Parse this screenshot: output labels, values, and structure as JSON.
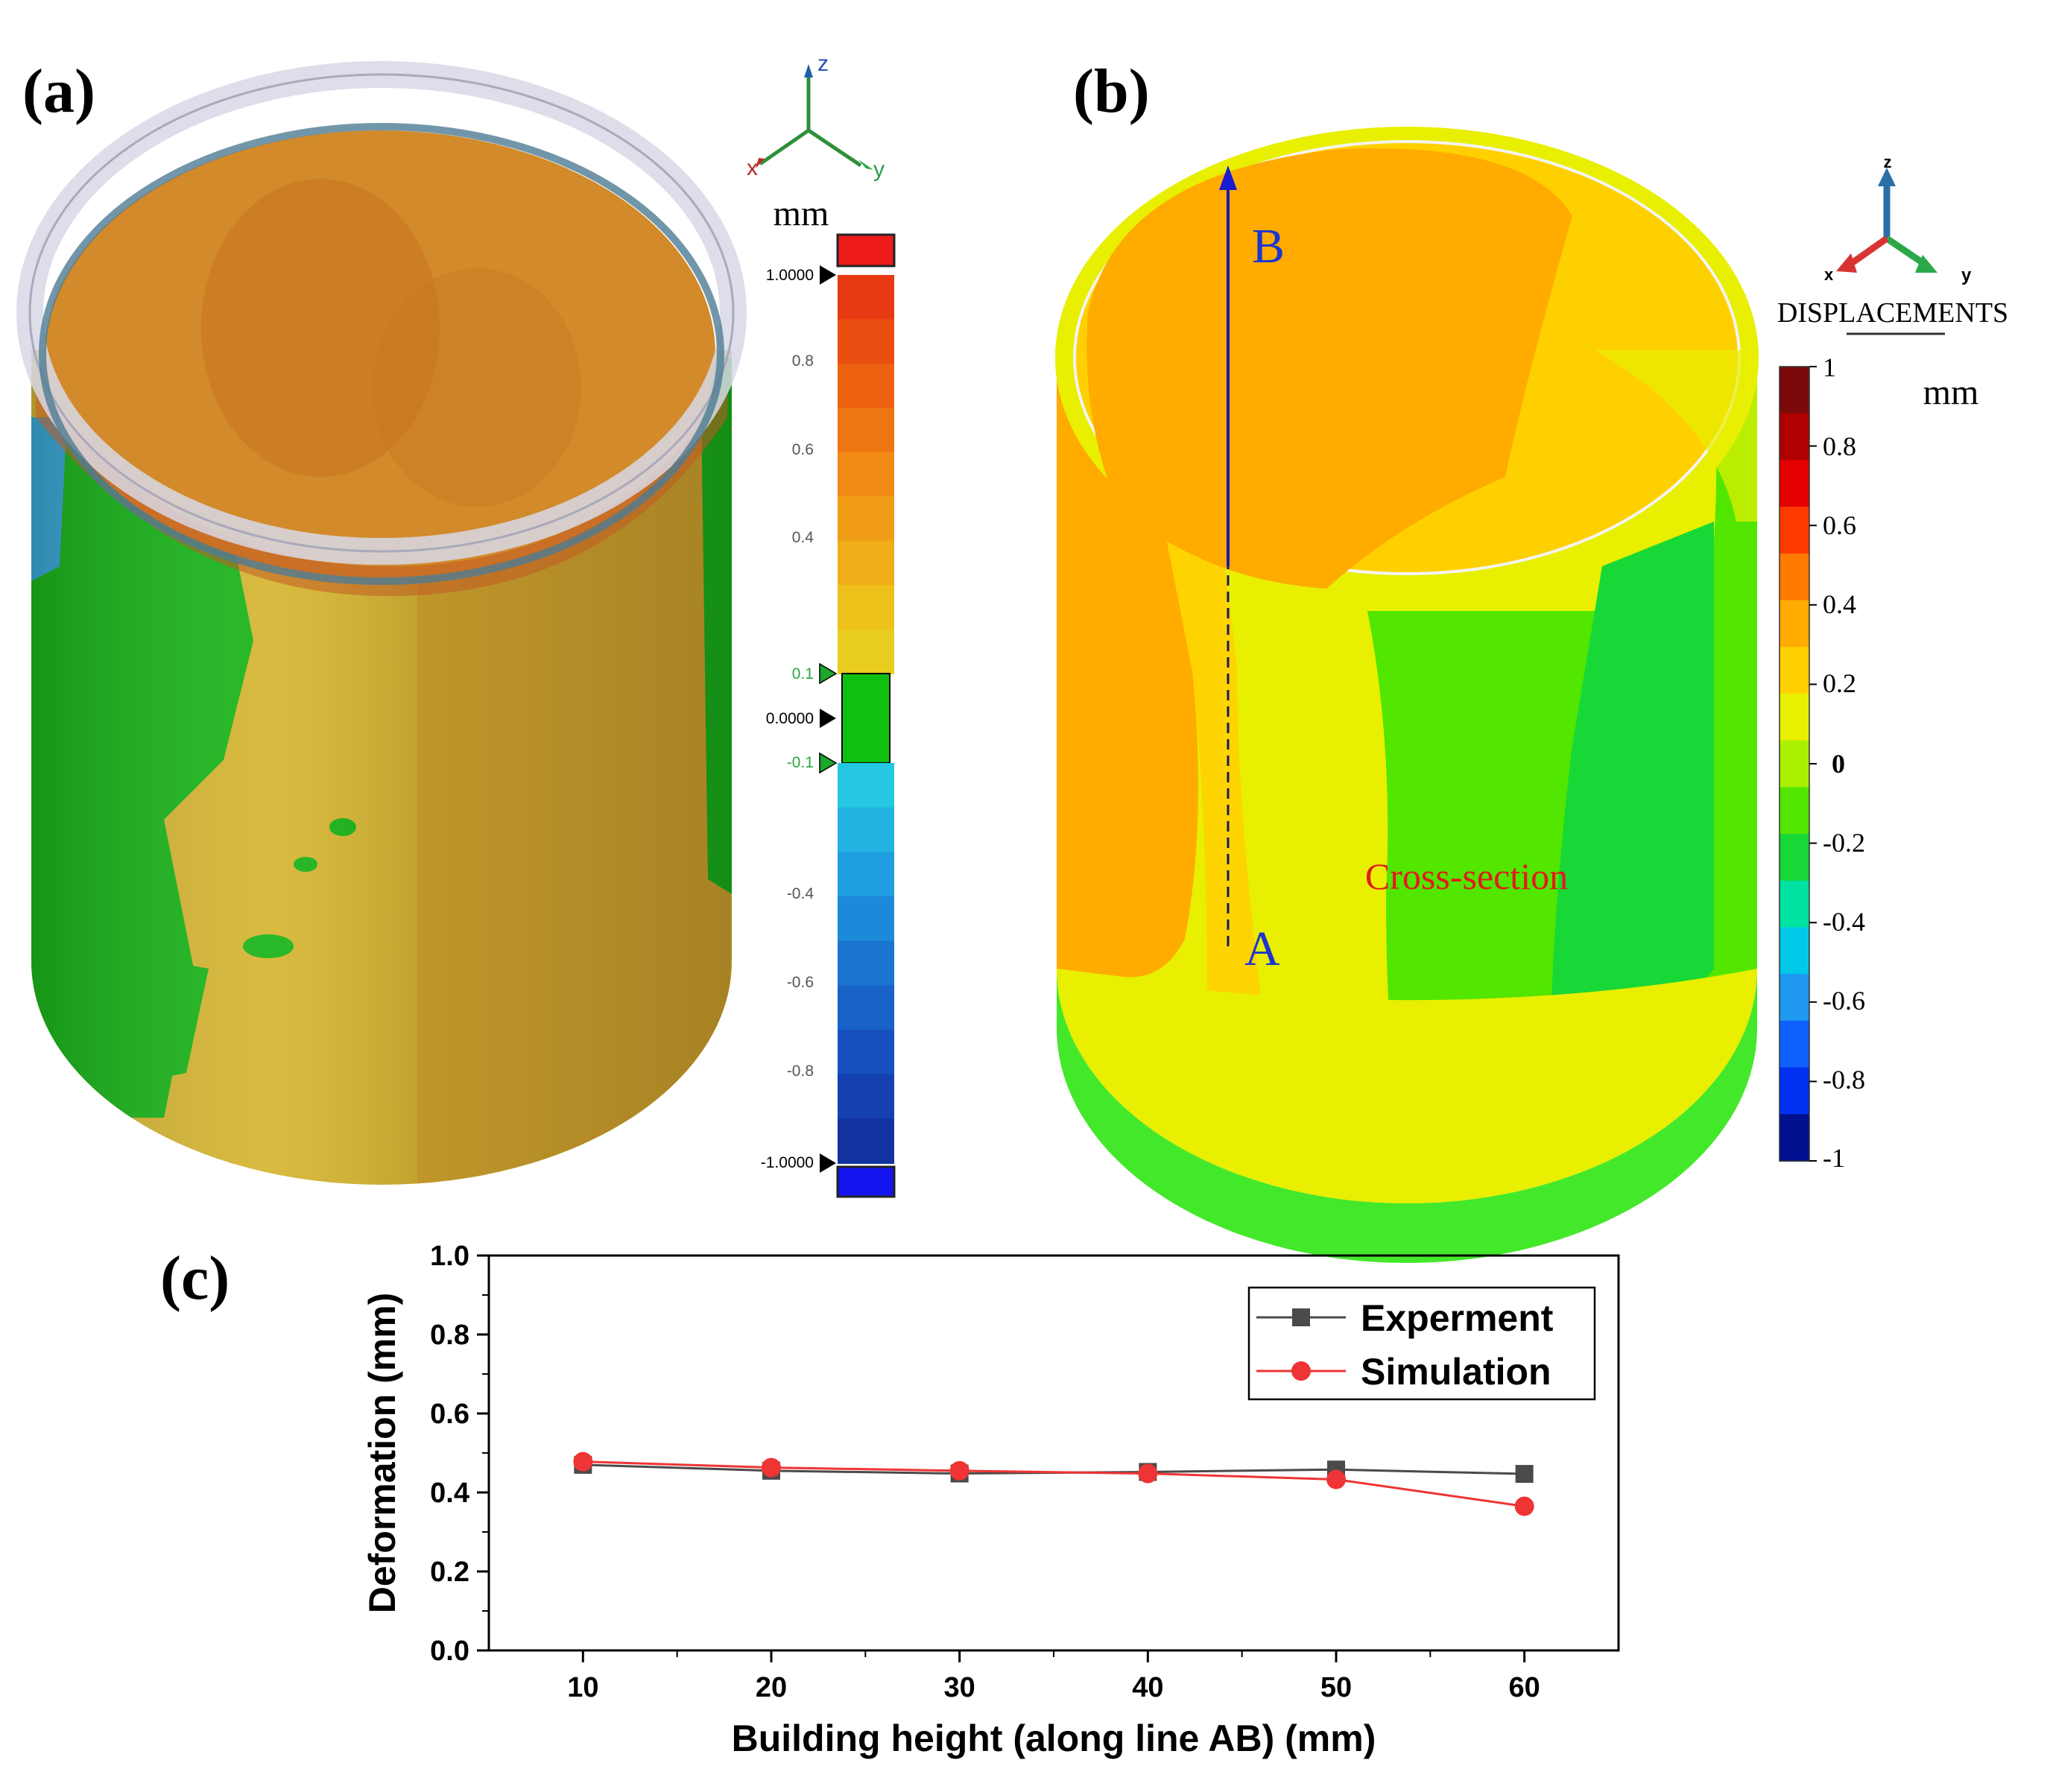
{
  "panels": {
    "a": {
      "label": "(a)",
      "unit": "mm",
      "axis_labels": {
        "z": "z",
        "y": "y",
        "x": "x"
      },
      "scale_ticks": [
        "1.0000",
        "0.8",
        "0.6",
        "0.4",
        "0.1",
        "0.0000",
        "-0.1",
        "-0.4",
        "-0.6",
        "-0.8",
        "-1.0000"
      ],
      "tolerance_band": [
        -0.1,
        0.1
      ]
    },
    "b": {
      "label": "(b)",
      "legend_title": "DISPLACEMENTS",
      "unit": "mm",
      "axis_labels": {
        "z": "z",
        "y": "y",
        "x": "x"
      },
      "scale_ticks": [
        "1",
        "0.8",
        "0.6",
        "0.4",
        "0.2",
        "0",
        "-0.2",
        "-0.4",
        "-0.6",
        "-0.8",
        "-1"
      ],
      "point_a": "A",
      "point_b": "B",
      "annotation": "Cross-section"
    },
    "c": {
      "label": "(c)"
    }
  },
  "colors": {
    "band": [
      "#7a0a0a",
      "#b00000",
      "#e40000",
      "#ff3a00",
      "#ff7a00",
      "#ffab00",
      "#ffd000",
      "#e8ef00",
      "#aaf000",
      "#52e600",
      "#17d836",
      "#00e2a0",
      "#00c9e8",
      "#1f98f0",
      "#1060ff",
      "#0030f0",
      "#00108e"
    ],
    "scan_band": [
      "#e83a12",
      "#ea4e10",
      "#ec6210",
      "#ee7612",
      "#f08a14",
      "#f19c16",
      "#efae18",
      "#edc01a",
      "#e9cd1e",
      "#10c010",
      "#24c8e0",
      "#22b2e2",
      "#1e9ee0",
      "#1c8ad8",
      "#1a74d0",
      "#1862c8",
      "#1650be",
      "#1440b0",
      "#1232a0"
    ]
  },
  "chart_data": {
    "type": "line",
    "xlabel": "Building height (along line AB) (mm)",
    "ylabel": "Deformation (mm)",
    "xlim": [
      5,
      65
    ],
    "ylim": [
      0.0,
      1.0
    ],
    "xticks": [
      10,
      20,
      30,
      40,
      50,
      60
    ],
    "yticks": [
      0.0,
      0.2,
      0.4,
      0.6,
      0.8,
      1.0
    ],
    "grid": false,
    "legend": "top-right",
    "series": [
      {
        "name": "Experment",
        "color": "#4a4a4a",
        "marker": "square",
        "x": [
          10,
          20,
          30,
          40,
          50,
          60
        ],
        "y": [
          0.47,
          0.455,
          0.448,
          0.452,
          0.458,
          0.447
        ]
      },
      {
        "name": "Simulation",
        "color": "#ee3434",
        "marker": "circle",
        "x": [
          10,
          20,
          30,
          40,
          50,
          60
        ],
        "y": [
          0.478,
          0.463,
          0.455,
          0.448,
          0.433,
          0.365
        ]
      }
    ]
  }
}
